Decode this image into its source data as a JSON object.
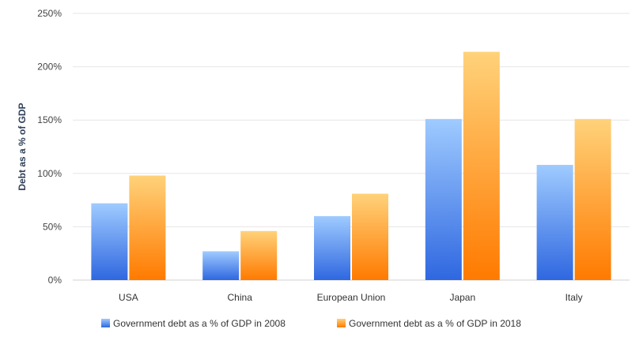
{
  "chart_data": {
    "type": "bar",
    "title": "",
    "xlabel": "",
    "ylabel": "Debt as a % of GDP",
    "ylim": [
      0,
      250
    ],
    "yticks": [
      "0%",
      "50%",
      "100%",
      "150%",
      "200%",
      "250%"
    ],
    "ytick_values": [
      0,
      50,
      100,
      150,
      200,
      250
    ],
    "categories": [
      "USA",
      "China",
      "European Union",
      "Japan",
      "Italy"
    ],
    "series": [
      {
        "name": "Government debt as a % of GDP in 2008",
        "values": [
          72,
          27,
          60,
          151,
          108
        ],
        "color": "#4d8ef0"
      },
      {
        "name": "Government debt as a % of GDP in 2018",
        "values": [
          98,
          46,
          81,
          214,
          151
        ],
        "color": "#ff8c1a"
      }
    ],
    "grid": true,
    "legend_position": "bottom"
  }
}
